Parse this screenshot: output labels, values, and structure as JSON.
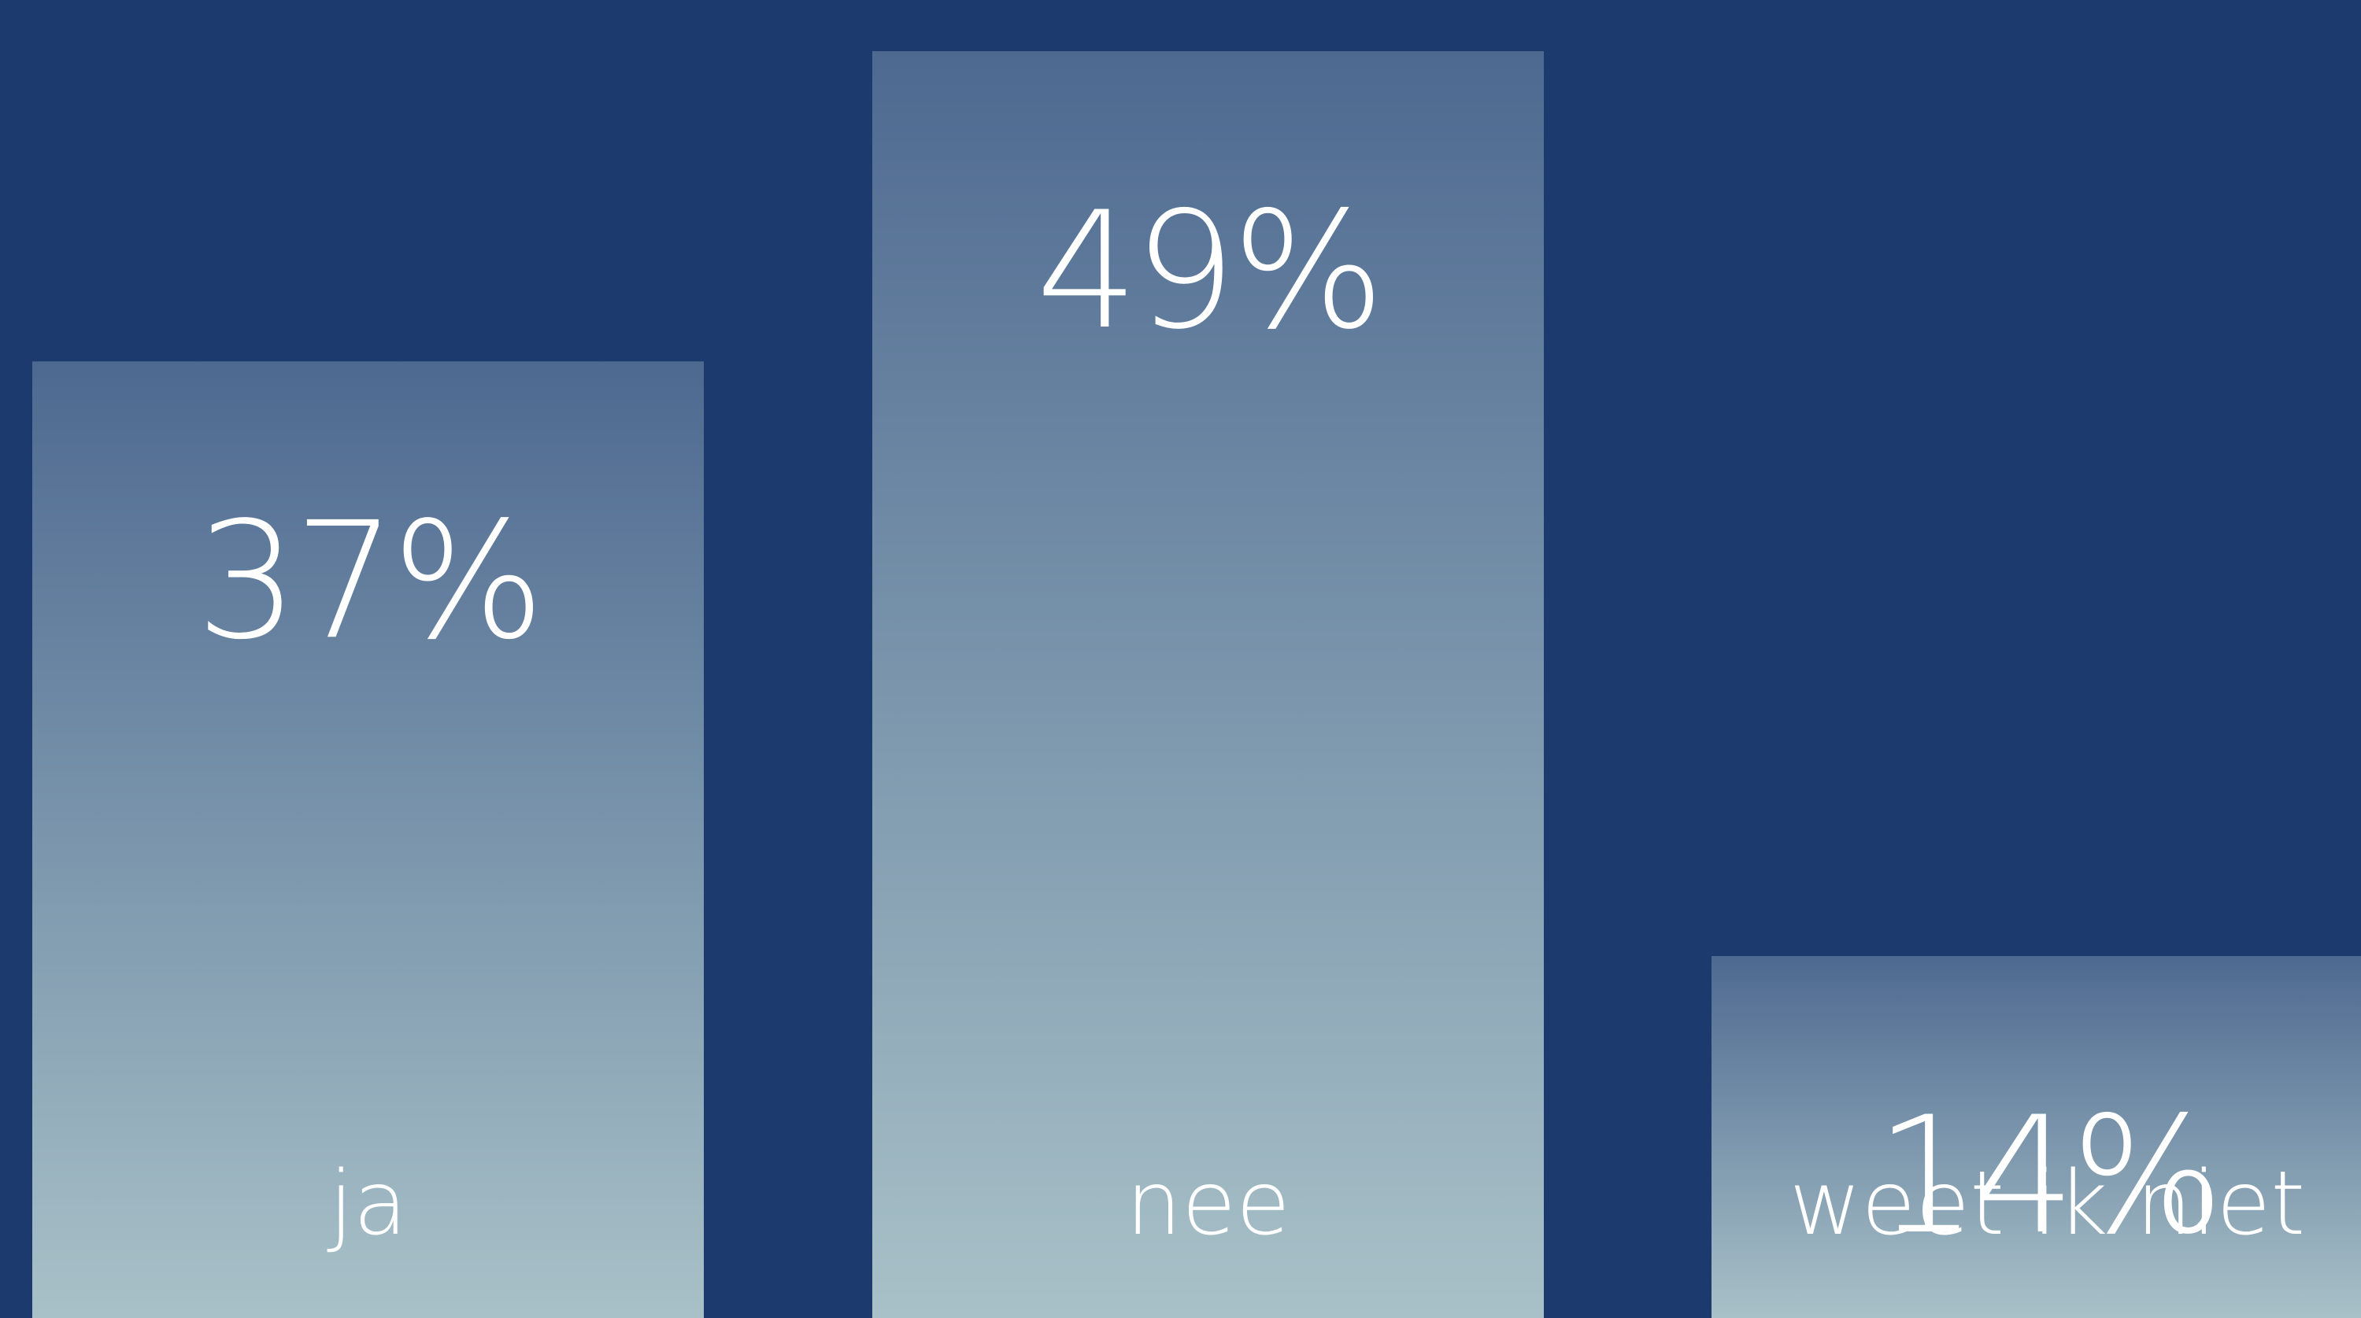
{
  "colors": {
    "background": "#1d3a6f",
    "bar_top": "#4d6990",
    "bar_bottom": "#a8c1c8",
    "text": "#ffffff"
  },
  "chart_data": {
    "type": "bar",
    "categories": [
      "ja",
      "nee",
      "weet ik niet"
    ],
    "values": [
      37,
      49,
      14
    ],
    "value_labels": [
      "37%",
      "49%",
      "14%"
    ],
    "unit": "%",
    "title": "",
    "xlabel": "",
    "ylabel": "",
    "grid": false,
    "legend": "none"
  }
}
